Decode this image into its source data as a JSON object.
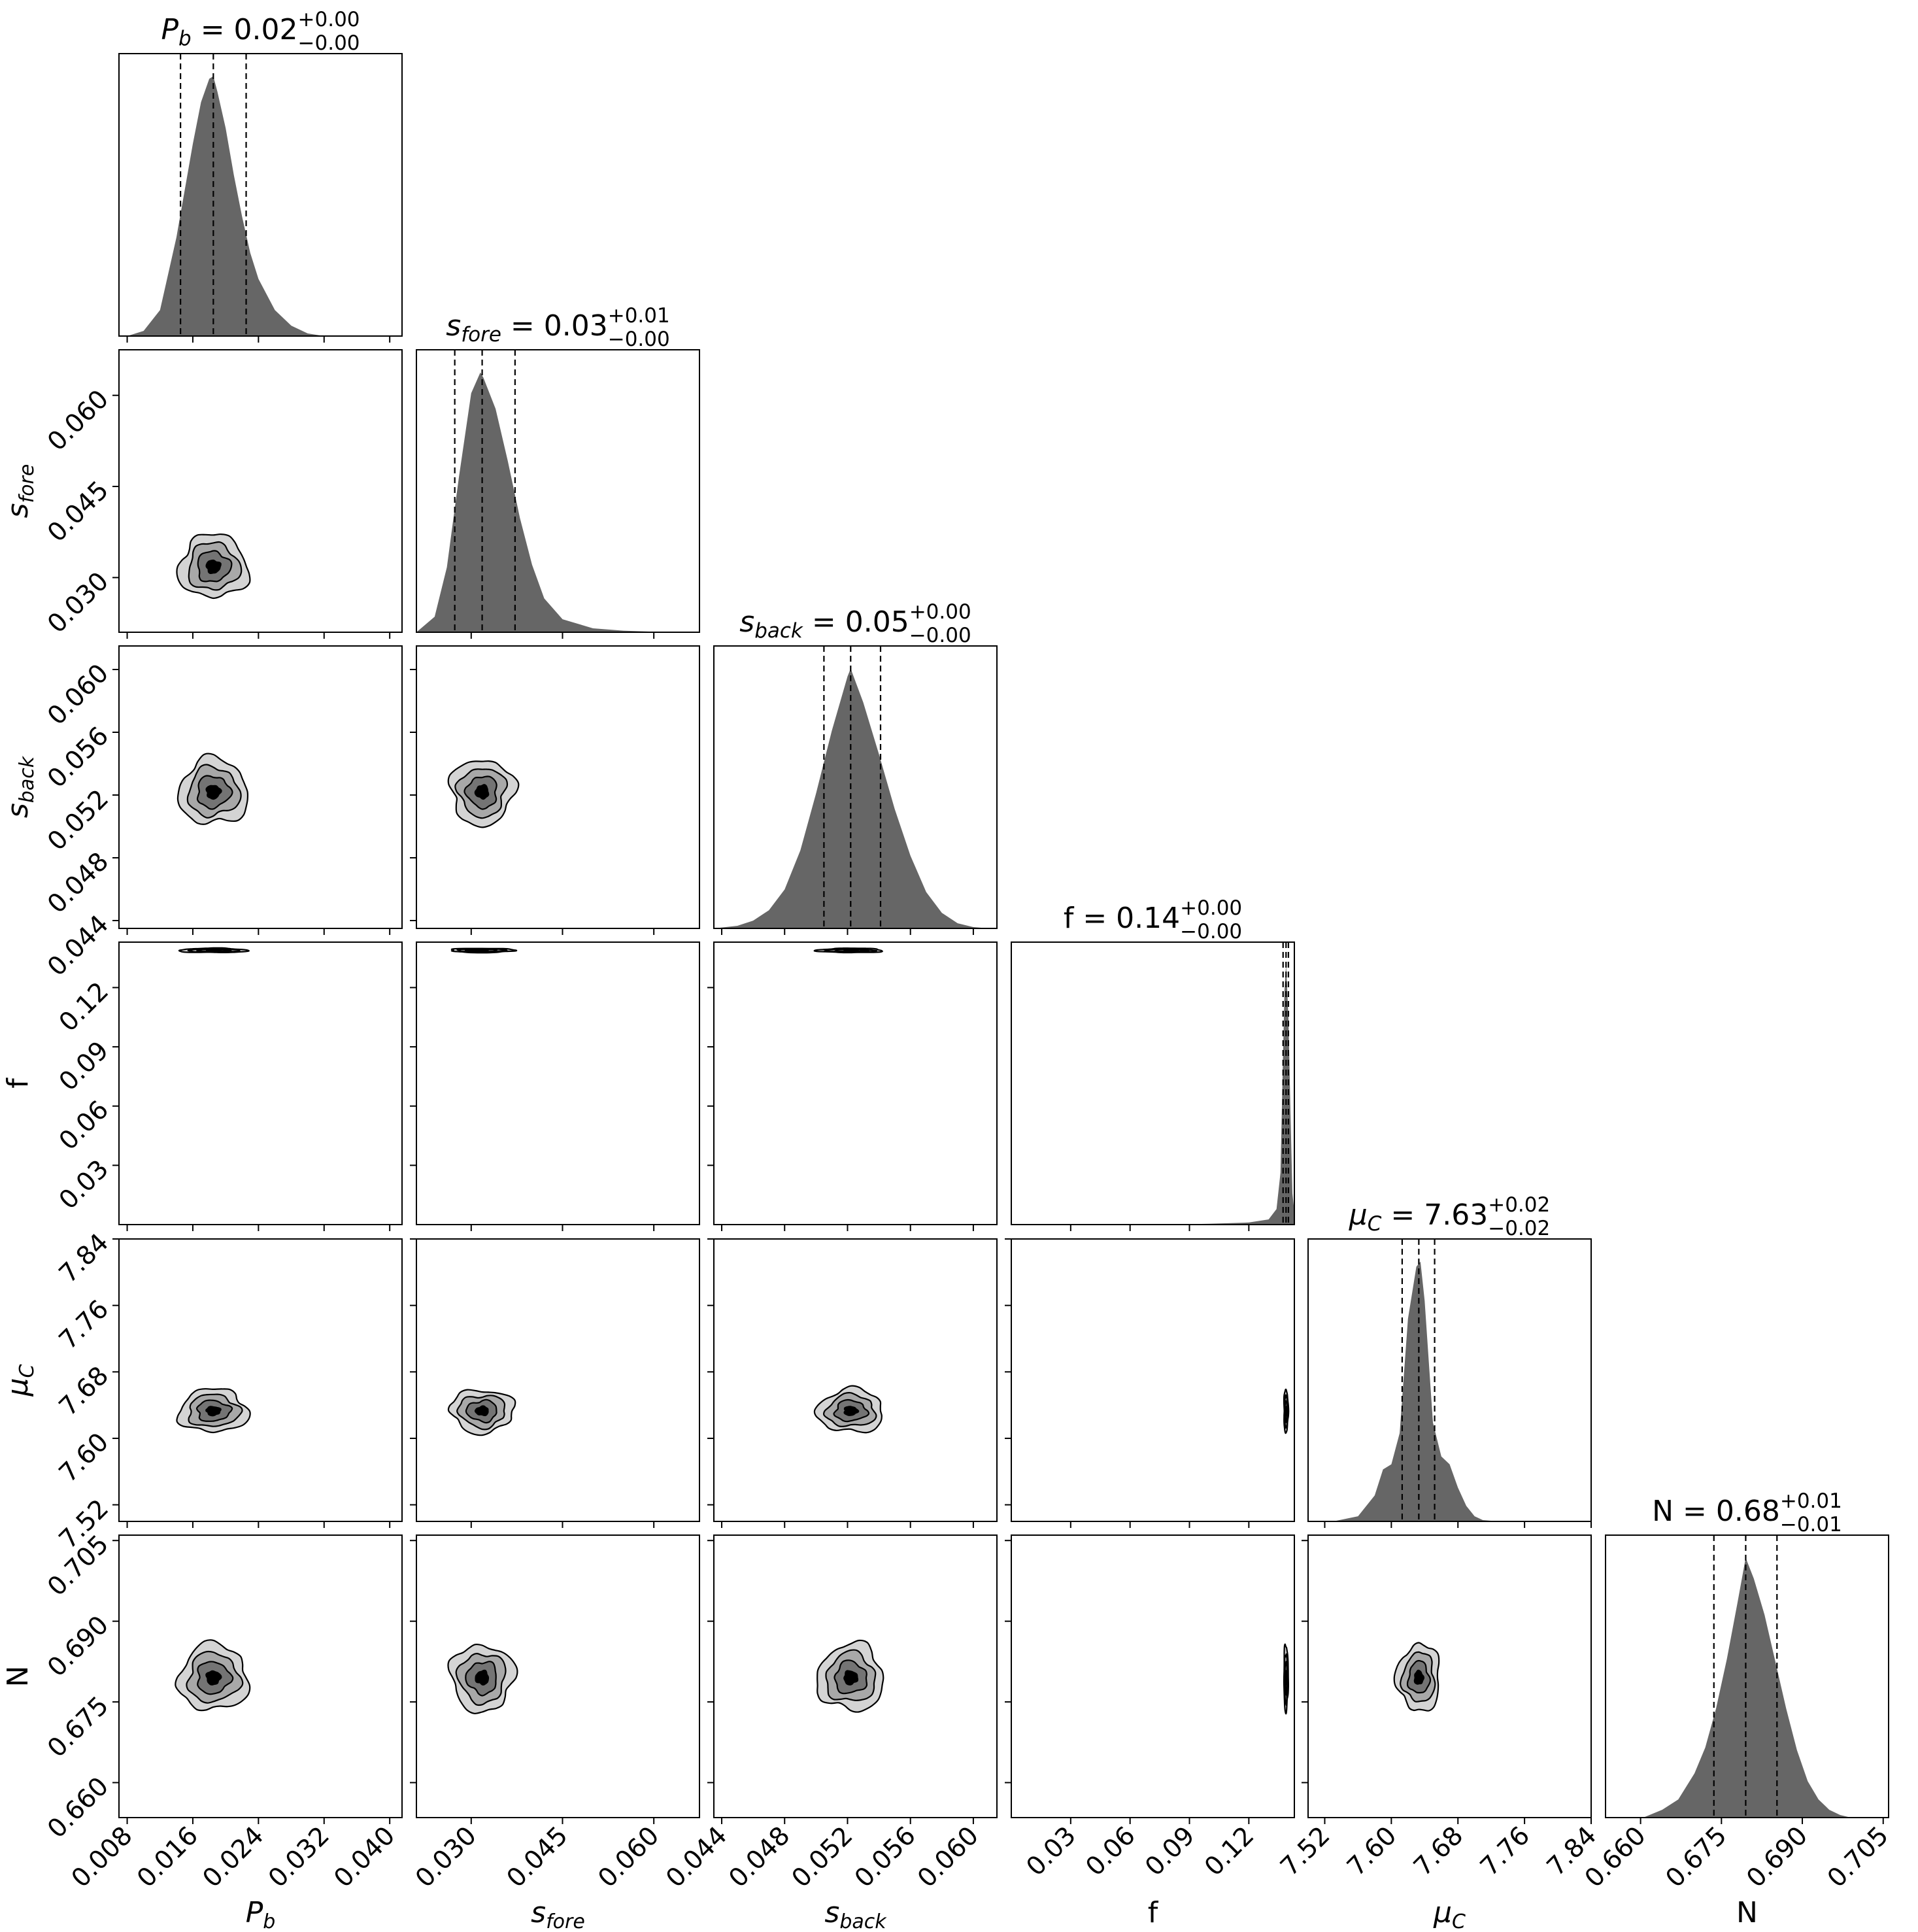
{
  "chart_data": {
    "type": "corner",
    "parameters": [
      {
        "key": "Pb",
        "label_main": "P",
        "label_sub": "b",
        "label_italic": true,
        "range": [
          0.007,
          0.0415
        ],
        "ticks": [
          0.008,
          0.016,
          0.024,
          0.032,
          0.04
        ],
        "tick_labels": [
          "0.008",
          "0.016",
          "0.024",
          "0.032",
          "0.040"
        ],
        "median": 0.0185,
        "q16": 0.0145,
        "q84": 0.0225,
        "title": {
          "lead": "P",
          "sub": "b",
          "italic": true,
          "rest": " = 0.02",
          "sup": "+0.00",
          "subs": "−0.00"
        }
      },
      {
        "key": "sfore",
        "label_main": "s",
        "label_sub": "fore",
        "label_italic": true,
        "range": [
          0.021,
          0.0675
        ],
        "ticks": [
          0.03,
          0.045,
          0.06
        ],
        "tick_labels": [
          "0.030",
          "0.045",
          "0.060"
        ],
        "median": 0.0318,
        "q16": 0.0273,
        "q84": 0.0372,
        "title": {
          "lead": "s",
          "sub": "fore",
          "italic": true,
          "rest": " = 0.03",
          "sup": "+0.01",
          "subs": "−0.00"
        }
      },
      {
        "key": "sback",
        "label_main": "s",
        "label_sub": "back",
        "label_italic": true,
        "range": [
          0.0435,
          0.0615
        ],
        "ticks": [
          0.044,
          0.048,
          0.052,
          0.056,
          0.06
        ],
        "tick_labels": [
          "0.044",
          "0.048",
          "0.052",
          "0.056",
          "0.060"
        ],
        "median": 0.0522,
        "q16": 0.0505,
        "q84": 0.0541,
        "title": {
          "lead": "s",
          "sub": "back",
          "italic": true,
          "rest": " = 0.05",
          "sup": "+0.00",
          "subs": "−0.00"
        }
      },
      {
        "key": "f",
        "label_main": "f",
        "label_sub": "",
        "label_italic": false,
        "range": [
          0.0,
          0.143
        ],
        "ticks": [
          0.03,
          0.06,
          0.09,
          0.12
        ],
        "tick_labels": [
          "0.03",
          "0.06",
          "0.09",
          "0.12"
        ],
        "median": 0.1388,
        "q16": 0.1373,
        "q84": 0.14,
        "title": {
          "lead": "f",
          "sub": "",
          "italic": false,
          "rest": " = 0.14",
          "sup": "+0.00",
          "subs": "−0.00"
        }
      },
      {
        "key": "muC",
        "label_main": "μ",
        "label_sub": "C",
        "label_italic": true,
        "range": [
          7.5,
          7.84
        ],
        "ticks": [
          7.52,
          7.6,
          7.68,
          7.76,
          7.84
        ],
        "tick_labels": [
          "7.52",
          "7.60",
          "7.68",
          "7.76",
          "7.84"
        ],
        "median": 7.633,
        "q16": 7.613,
        "q84": 7.652,
        "title": {
          "lead": "μ",
          "sub": "C",
          "italic": true,
          "rest": " = 7.63",
          "sup": "+0.02",
          "subs": "−0.02"
        }
      },
      {
        "key": "N",
        "label_main": "N",
        "label_sub": "",
        "label_italic": false,
        "range": [
          0.6535,
          0.706
        ],
        "ticks": [
          0.66,
          0.675,
          0.69,
          0.705
        ],
        "tick_labels": [
          "0.660",
          "0.675",
          "0.690",
          "0.705"
        ],
        "median": 0.6795,
        "q16": 0.6736,
        "q84": 0.6853,
        "title": {
          "lead": "N",
          "sub": "",
          "italic": false,
          "rest": " = 0.68",
          "sup": "+0.01",
          "subs": "−0.01"
        }
      }
    ],
    "histograms": [
      {
        "x": [
          0.008,
          0.01,
          0.012,
          0.014,
          0.016,
          0.017,
          0.018,
          0.0185,
          0.019,
          0.02,
          0.021,
          0.022,
          0.023,
          0.024,
          0.026,
          0.028,
          0.03,
          0.032
        ],
        "y": [
          0.0,
          0.02,
          0.1,
          0.38,
          0.74,
          0.9,
          0.99,
          1.0,
          0.94,
          0.8,
          0.62,
          0.46,
          0.32,
          0.22,
          0.1,
          0.04,
          0.01,
          0.0
        ]
      },
      {
        "x": [
          0.021,
          0.024,
          0.026,
          0.028,
          0.03,
          0.0315,
          0.032,
          0.034,
          0.036,
          0.038,
          0.04,
          0.042,
          0.045,
          0.05,
          0.055,
          0.06,
          0.065
        ],
        "y": [
          0.0,
          0.06,
          0.25,
          0.6,
          0.92,
          1.0,
          0.98,
          0.86,
          0.66,
          0.44,
          0.26,
          0.13,
          0.05,
          0.015,
          0.006,
          0.002,
          0.0
        ]
      },
      {
        "x": [
          0.0435,
          0.045,
          0.046,
          0.047,
          0.048,
          0.049,
          0.05,
          0.051,
          0.052,
          0.0522,
          0.053,
          0.054,
          0.055,
          0.056,
          0.057,
          0.058,
          0.059,
          0.06,
          0.061
        ],
        "y": [
          0.0,
          0.01,
          0.03,
          0.07,
          0.15,
          0.3,
          0.52,
          0.76,
          0.97,
          1.0,
          0.87,
          0.67,
          0.46,
          0.28,
          0.14,
          0.06,
          0.02,
          0.005,
          0.0
        ]
      },
      {
        "x": [
          0.08,
          0.1,
          0.12,
          0.13,
          0.134,
          0.136,
          0.137,
          0.138,
          0.1388,
          0.139,
          0.14,
          0.141,
          0.142,
          0.143
        ],
        "y": [
          0.0,
          0.003,
          0.008,
          0.02,
          0.06,
          0.2,
          0.55,
          0.9,
          1.0,
          0.97,
          0.8,
          0.45,
          0.12,
          0.05
        ]
      },
      {
        "x": [
          7.53,
          7.56,
          7.58,
          7.59,
          7.6,
          7.61,
          7.62,
          7.63,
          7.635,
          7.64,
          7.65,
          7.66,
          7.67,
          7.68,
          7.69,
          7.7,
          7.71,
          7.73
        ],
        "y": [
          0.0,
          0.02,
          0.1,
          0.2,
          0.22,
          0.34,
          0.78,
          0.98,
          1.0,
          0.85,
          0.38,
          0.25,
          0.22,
          0.13,
          0.06,
          0.02,
          0.005,
          0.0
        ]
      },
      {
        "x": [
          0.6605,
          0.664,
          0.667,
          0.67,
          0.672,
          0.674,
          0.676,
          0.678,
          0.6795,
          0.681,
          0.683,
          0.685,
          0.687,
          0.689,
          0.691,
          0.693,
          0.695,
          0.697,
          0.699
        ],
        "y": [
          0.0,
          0.03,
          0.07,
          0.17,
          0.27,
          0.42,
          0.61,
          0.83,
          1.0,
          0.92,
          0.78,
          0.6,
          0.42,
          0.26,
          0.14,
          0.07,
          0.03,
          0.01,
          0.0
        ]
      }
    ],
    "contour_fill_colors": [
      "#d4d4d4",
      "#a8a8a8",
      "#747474",
      "#000000"
    ]
  },
  "colors": {
    "hist_fill": "#666666",
    "axes": "#000000",
    "background": "#ffffff"
  }
}
